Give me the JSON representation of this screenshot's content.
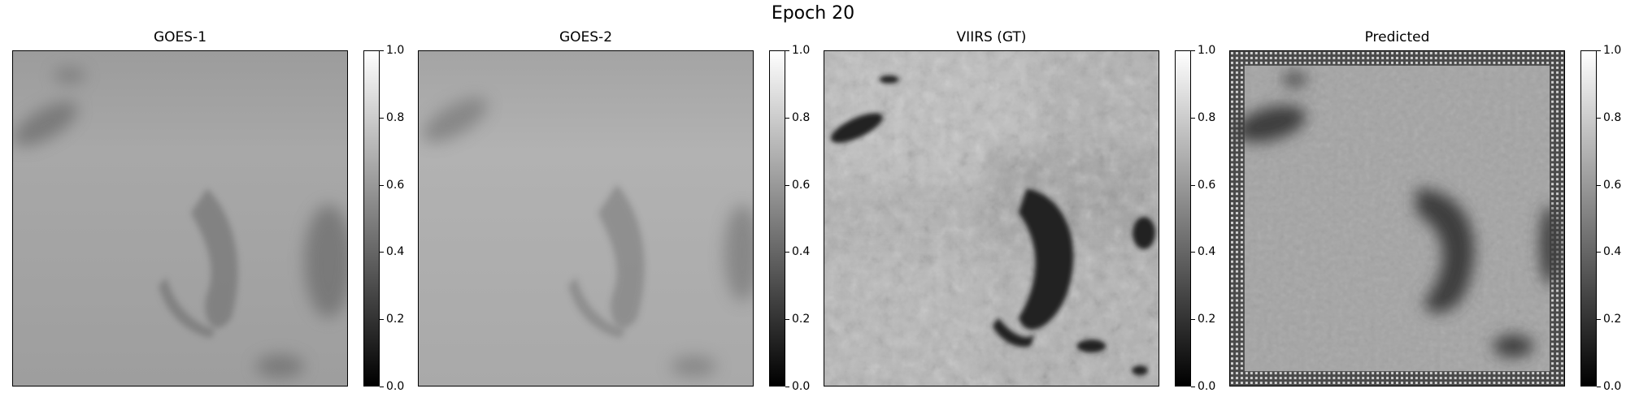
{
  "figure": {
    "suptitle": "Epoch 20"
  },
  "panels": [
    {
      "title": "GOES-1",
      "base_color": "#9a9a9a"
    },
    {
      "title": "GOES-2",
      "base_color": "#a6a6a6"
    },
    {
      "title": "VIIRS (GT)",
      "base_color": "#b4b4b4"
    },
    {
      "title": "Predicted",
      "base_color": "#a2a2a2"
    }
  ],
  "colorbar": {
    "cmap": "gray",
    "range": [
      0.0,
      1.0
    ],
    "ticks": [
      "0.0",
      "0.2",
      "0.4",
      "0.6",
      "0.8",
      "1.0"
    ]
  }
}
